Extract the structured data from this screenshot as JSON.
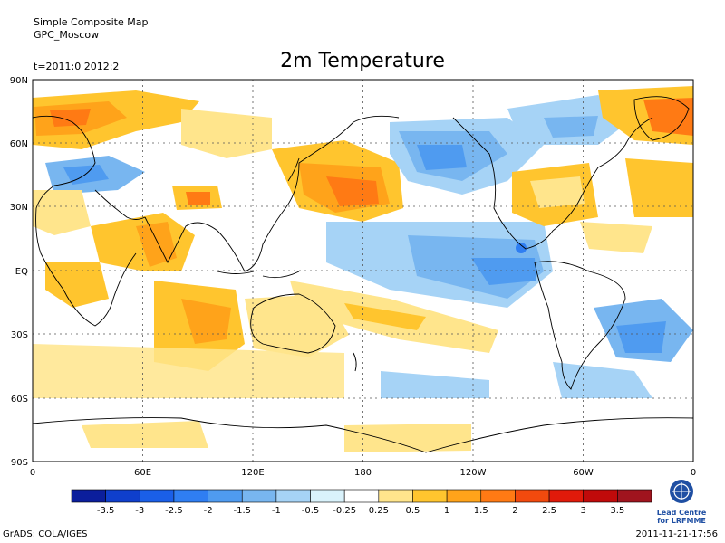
{
  "header": {
    "product": "Simple Composite Map",
    "source": "GPC_Moscow",
    "time_range": "t=2011:0 2012:2"
  },
  "title": "2m Temperature",
  "lat_labels": [
    "90N",
    "60N",
    "30N",
    "EQ",
    "30S",
    "60S",
    "90S"
  ],
  "lon_labels": [
    "0",
    "60E",
    "120E",
    "180",
    "120W",
    "60W",
    "0"
  ],
  "colorbar": {
    "ticks": [
      "-3.5",
      "-3",
      "-2.5",
      "-2",
      "-1.5",
      "-1",
      "-0.5",
      "-0.25",
      "0.25",
      "0.5",
      "1",
      "1.5",
      "2",
      "2.5",
      "3",
      "3.5"
    ],
    "colors": [
      "#0b1e9c",
      "#0f3fcc",
      "#1a5fe8",
      "#2f7ef2",
      "#4f9bf0",
      "#78b6f0",
      "#a6d3f6",
      "#d9f2fb",
      "#ffffff",
      "#ffe58c",
      "#ffc52e",
      "#ffa31a",
      "#ff7a14",
      "#f24a0e",
      "#e01a0a",
      "#c00a0a",
      "#a0141e"
    ]
  },
  "footer": {
    "software": "GrADS: COLA/IGES",
    "timestamp": "2011-11-21-17:56"
  },
  "logo": {
    "name": "wmo-logo-icon",
    "text_line1": "Lead Centre",
    "text_line2": "for LRFMME"
  }
}
